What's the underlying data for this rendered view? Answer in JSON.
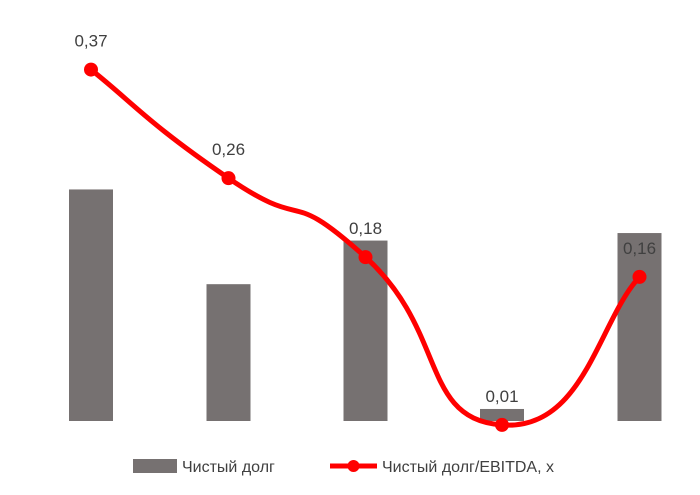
{
  "chart_data": {
    "type": "bar+line",
    "categories": [
      "",
      "",
      "",
      "",
      ""
    ],
    "series": [
      {
        "name": "Чистый долг",
        "type": "bar",
        "axis": "secondary",
        "values": [
          154,
          91,
          120,
          8,
          125
        ],
        "ylim": [
          0,
          280
        ],
        "color": "#767171"
      },
      {
        "name": "Чистый долг/EBITDA, x",
        "type": "line",
        "smooth": true,
        "axis": "primary",
        "values": [
          0.37,
          0.26,
          0.18,
          0.01,
          0.16
        ],
        "labels": [
          "0,37",
          "0,26",
          "0,18",
          "0,01",
          "0,16"
        ],
        "ylim": [
          -0.1,
          0.4
        ],
        "color": "#ff0000"
      }
    ],
    "title": "",
    "xlabel": "",
    "ylabel": "",
    "grid": false,
    "legend_position": "bottom"
  }
}
